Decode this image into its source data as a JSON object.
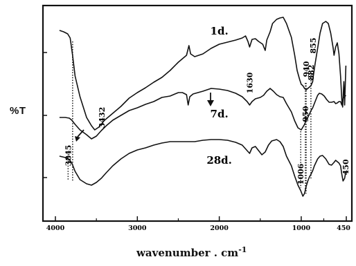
{
  "chart_data": {
    "type": "line",
    "ylabel": "%T",
    "xlabel_main": "wavenumber . cm",
    "xlabel_sup": "-1",
    "x_ticks": [
      "4000",
      "3000",
      "2000",
      "1000",
      "450"
    ],
    "xlim": [
      4000,
      450
    ],
    "series": [
      {
        "name": "1d.",
        "points": [
          [
            3950,
            44
          ],
          [
            3900,
            46
          ],
          [
            3850,
            49
          ],
          [
            3820,
            55
          ],
          [
            3790,
            80
          ],
          [
            3760,
            110
          ],
          [
            3700,
            140
          ],
          [
            3620,
            170
          ],
          [
            3560,
            182
          ],
          [
            3520,
            188
          ],
          [
            3470,
            184
          ],
          [
            3400,
            174
          ],
          [
            3300,
            164
          ],
          [
            3200,
            154
          ],
          [
            3100,
            142
          ],
          [
            3000,
            134
          ],
          [
            2900,
            127
          ],
          [
            2800,
            119
          ],
          [
            2700,
            112
          ],
          [
            2600,
            102
          ],
          [
            2500,
            90
          ],
          [
            2440,
            84
          ],
          [
            2400,
            80
          ],
          [
            2370,
            66
          ],
          [
            2350,
            78
          ],
          [
            2300,
            82
          ],
          [
            2200,
            78
          ],
          [
            2100,
            70
          ],
          [
            2000,
            64
          ],
          [
            1900,
            61
          ],
          [
            1800,
            58
          ],
          [
            1720,
            55
          ],
          [
            1680,
            52
          ],
          [
            1650,
            60
          ],
          [
            1630,
            68
          ],
          [
            1600,
            57
          ],
          [
            1560,
            56
          ],
          [
            1520,
            60
          ],
          [
            1470,
            64
          ],
          [
            1440,
            73
          ],
          [
            1420,
            58
          ],
          [
            1380,
            46
          ],
          [
            1350,
            34
          ],
          [
            1300,
            28
          ],
          [
            1260,
            26
          ],
          [
            1220,
            25
          ],
          [
            1180,
            34
          ],
          [
            1120,
            54
          ],
          [
            1080,
            80
          ],
          [
            1050,
            102
          ],
          [
            1020,
            115
          ],
          [
            1000,
            122
          ],
          [
            980,
            124
          ],
          [
            960,
            128
          ],
          [
            940,
            130
          ],
          [
            920,
            128
          ],
          [
            900,
            126
          ],
          [
            882,
            124
          ],
          [
            860,
            118
          ],
          [
            855,
            112
          ],
          [
            830,
            92
          ],
          [
            800,
            70
          ],
          [
            770,
            48
          ],
          [
            740,
            34
          ],
          [
            700,
            31
          ],
          [
            670,
            34
          ],
          [
            640,
            48
          ],
          [
            610,
            70
          ],
          [
            600,
            80
          ],
          [
            580,
            68
          ],
          [
            560,
            62
          ],
          [
            540,
            78
          ],
          [
            520,
            110
          ],
          [
            505,
            144
          ],
          [
            495,
            155
          ],
          [
            480,
            118
          ],
          [
            470,
            152
          ],
          [
            455,
            95
          ]
        ],
        "labels": [
          {
            "text": "1d.",
            "wn": 2000,
            "y": 50
          },
          {
            "text": "940",
            "wn": 940,
            "y": 100,
            "rot": -90
          },
          {
            "text": "882",
            "wn": 882,
            "y": 105,
            "rot": -90
          },
          {
            "text": "855",
            "wn": 855,
            "y": 66,
            "rot": -90
          }
        ]
      },
      {
        "name": "7d.",
        "points": [
          [
            3950,
            170
          ],
          [
            3880,
            170
          ],
          [
            3830,
            171
          ],
          [
            3800,
            174
          ],
          [
            3760,
            180
          ],
          [
            3700,
            188
          ],
          [
            3620,
            195
          ],
          [
            3560,
            201
          ],
          [
            3500,
            197
          ],
          [
            3440,
            189
          ],
          [
            3380,
            182
          ],
          [
            3300,
            174
          ],
          [
            3200,
            167
          ],
          [
            3100,
            160
          ],
          [
            3000,
            156
          ],
          [
            2900,
            151
          ],
          [
            2800,
            147
          ],
          [
            2700,
            141
          ],
          [
            2600,
            139
          ],
          [
            2500,
            134
          ],
          [
            2450,
            134
          ],
          [
            2400,
            137
          ],
          [
            2380,
            152
          ],
          [
            2360,
            140
          ],
          [
            2320,
            136
          ],
          [
            2200,
            132
          ],
          [
            2100,
            128
          ],
          [
            2000,
            129
          ],
          [
            1900,
            131
          ],
          [
            1800,
            135
          ],
          [
            1720,
            140
          ],
          [
            1660,
            147
          ],
          [
            1630,
            152
          ],
          [
            1600,
            147
          ],
          [
            1560,
            143
          ],
          [
            1500,
            141
          ],
          [
            1460,
            138
          ],
          [
            1420,
            132
          ],
          [
            1380,
            128
          ],
          [
            1340,
            132
          ],
          [
            1300,
            137
          ],
          [
            1260,
            140
          ],
          [
            1220,
            141
          ],
          [
            1180,
            150
          ],
          [
            1120,
            162
          ],
          [
            1080,
            175
          ],
          [
            1040,
            185
          ],
          [
            1000,
            188
          ],
          [
            980,
            184
          ],
          [
            960,
            180
          ],
          [
            950,
            177
          ],
          [
            920,
            170
          ],
          [
            900,
            165
          ],
          [
            880,
            160
          ],
          [
            860,
            156
          ],
          [
            830,
            147
          ],
          [
            800,
            138
          ],
          [
            780,
            135
          ],
          [
            750,
            136
          ],
          [
            720,
            139
          ],
          [
            690,
            144
          ],
          [
            660,
            148
          ],
          [
            630,
            148
          ],
          [
            600,
            147
          ],
          [
            580,
            150
          ],
          [
            560,
            149
          ],
          [
            540,
            147
          ],
          [
            520,
            147
          ],
          [
            505,
            152
          ],
          [
            490,
            142
          ],
          [
            470,
            140
          ],
          [
            455,
            138
          ]
        ],
        "labels": [
          {
            "text": "7d.",
            "wn": 2000,
            "y": 170
          },
          {
            "text": "950",
            "wn": 950,
            "y": 165,
            "rot": -90
          },
          {
            "text": "1630",
            "wn": 1630,
            "y": 120,
            "rot": -90
          }
        ]
      },
      {
        "name": "28d.",
        "points": [
          [
            3950,
            226
          ],
          [
            3880,
            228
          ],
          [
            3830,
            231
          ],
          [
            3800,
            236
          ],
          [
            3760,
            248
          ],
          [
            3700,
            260
          ],
          [
            3620,
            266
          ],
          [
            3560,
            268
          ],
          [
            3500,
            264
          ],
          [
            3440,
            258
          ],
          [
            3380,
            250
          ],
          [
            3300,
            240
          ],
          [
            3200,
            230
          ],
          [
            3100,
            222
          ],
          [
            3000,
            217
          ],
          [
            2900,
            214
          ],
          [
            2800,
            210
          ],
          [
            2700,
            207
          ],
          [
            2600,
            205
          ],
          [
            2500,
            205
          ],
          [
            2400,
            205
          ],
          [
            2300,
            205
          ],
          [
            2200,
            203
          ],
          [
            2100,
            202
          ],
          [
            2000,
            202
          ],
          [
            1900,
            203
          ],
          [
            1800,
            206
          ],
          [
            1720,
            210
          ],
          [
            1660,
            218
          ],
          [
            1630,
            222
          ],
          [
            1600,
            214
          ],
          [
            1560,
            212
          ],
          [
            1520,
            218
          ],
          [
            1480,
            224
          ],
          [
            1440,
            220
          ],
          [
            1400,
            210
          ],
          [
            1360,
            204
          ],
          [
            1300,
            202
          ],
          [
            1260,
            205
          ],
          [
            1220,
            212
          ],
          [
            1180,
            226
          ],
          [
            1120,
            240
          ],
          [
            1080,
            255
          ],
          [
            1040,
            268
          ],
          [
            1006,
            276
          ],
          [
            980,
            284
          ],
          [
            960,
            280
          ],
          [
            940,
            270
          ],
          [
            920,
            262
          ],
          [
            900,
            256
          ],
          [
            880,
            252
          ],
          [
            860,
            247
          ],
          [
            840,
            240
          ],
          [
            800,
            230
          ],
          [
            770,
            226
          ],
          [
            740,
            225
          ],
          [
            700,
            230
          ],
          [
            660,
            238
          ],
          [
            630,
            239
          ],
          [
            600,
            235
          ],
          [
            580,
            232
          ],
          [
            560,
            234
          ],
          [
            540,
            236
          ],
          [
            520,
            240
          ],
          [
            505,
            252
          ],
          [
            490,
            262
          ],
          [
            470,
            258
          ],
          [
            455,
            248
          ]
        ],
        "labels": [
          {
            "text": "28d.",
            "wn": 2000,
            "y": 237
          },
          {
            "text": "1006",
            "wn": 1006,
            "y": 252,
            "rot": -90
          },
          {
            "text": "450",
            "wn": 460,
            "y": 242,
            "rot": -90
          }
        ]
      }
    ],
    "extra_labels": [
      {
        "text": "3432",
        "wn": 3432,
        "y": 170,
        "rot": -90
      },
      {
        "text": "3845",
        "wn": 3845,
        "y": 225,
        "rot": -90
      }
    ],
    "dotted_markers": [
      {
        "wn": 3790,
        "y1": 60,
        "y2": 262
      },
      {
        "wn": 3845,
        "y1": 225,
        "y2": 262
      },
      {
        "wn": 1006,
        "y1": 190,
        "y2": 272
      },
      {
        "wn": 950,
        "y1": 120,
        "y2": 280
      },
      {
        "wn": 940,
        "y1": 120,
        "y2": 280
      },
      {
        "wn": 882,
        "y1": 105,
        "y2": 260
      }
    ]
  }
}
